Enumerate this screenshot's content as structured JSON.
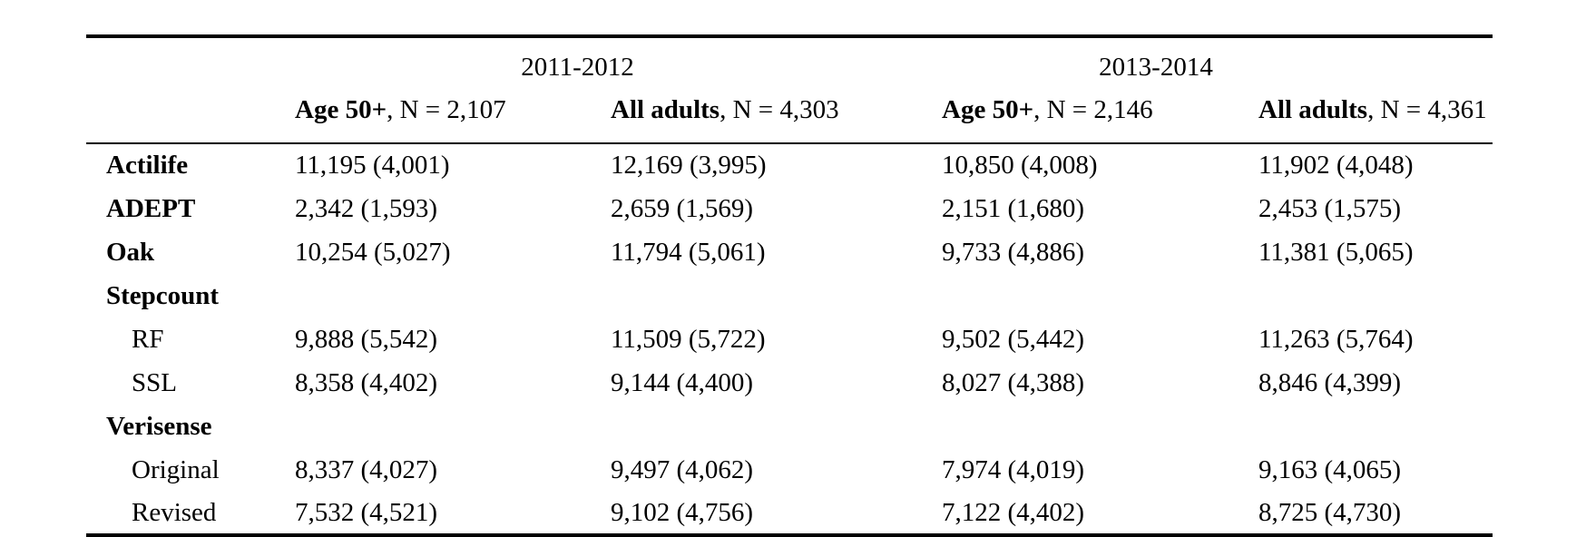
{
  "table": {
    "col_groups": [
      {
        "label": "2011-2012"
      },
      {
        "label": "2013-2014"
      }
    ],
    "sub_headers": [
      {
        "bold": "Age 50+",
        "rest": ", N = 2,107"
      },
      {
        "bold": "All adults",
        "rest": ", N = 4,303"
      },
      {
        "bold": "Age 50+",
        "rest": ", N = 2,146"
      },
      {
        "bold": "All adults",
        "rest": ", N = 4,361"
      }
    ],
    "rows": [
      {
        "label": "Actilife",
        "values": [
          "11,195 (4,001)",
          "12,169 (3,995)",
          "10,850 (4,008)",
          "11,902 (4,048)"
        ]
      },
      {
        "label": "ADEPT",
        "values": [
          "2,342 (1,593)",
          "2,659 (1,569)",
          "2,151 (1,680)",
          "2,453 (1,575)"
        ]
      },
      {
        "label": "Oak",
        "values": [
          "10,254 (5,027)",
          "11,794 (5,061)",
          "9,733 (4,886)",
          "11,381 (5,065)"
        ]
      },
      {
        "label": "Stepcount",
        "values": [
          "",
          "",
          "",
          ""
        ]
      },
      {
        "label": "RF",
        "values": [
          "9,888 (5,542)",
          "11,509 (5,722)",
          "9,502 (5,442)",
          "11,263 (5,764)"
        ]
      },
      {
        "label": "SSL",
        "values": [
          "8,358 (4,402)",
          "9,144 (4,400)",
          "8,027 (4,388)",
          "8,846 (4,399)"
        ]
      },
      {
        "label": "Verisense",
        "values": [
          "",
          "",
          "",
          ""
        ]
      },
      {
        "label": "Original",
        "values": [
          "8,337 (4,027)",
          "9,497 (4,062)",
          "7,974 (4,019)",
          "9,163 (4,065)"
        ]
      },
      {
        "label": "Revised",
        "values": [
          "7,532 (4,521)",
          "9,102 (4,756)",
          "7,122 (4,402)",
          "8,725 (4,730)"
        ]
      }
    ]
  }
}
